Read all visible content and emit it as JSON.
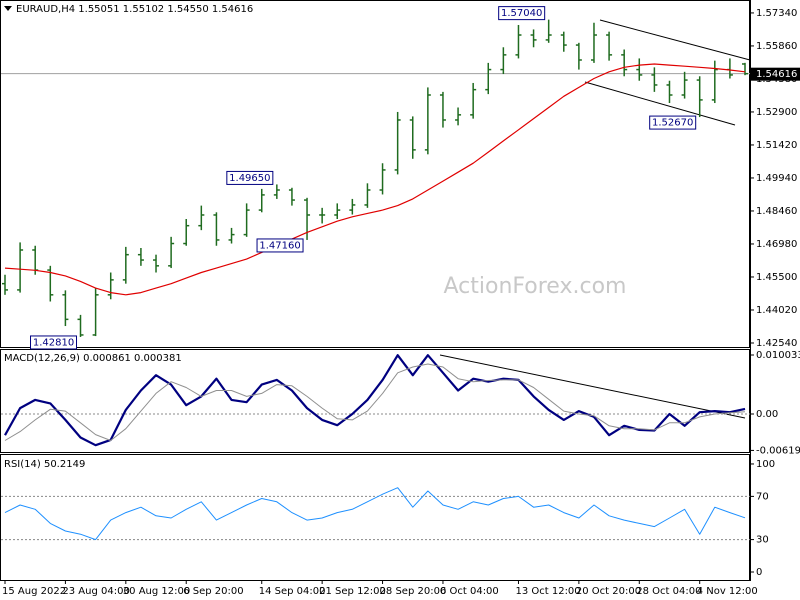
{
  "chart_data": [
    {
      "type": "ohlc",
      "title": "EURAUD,H4  1.55051 1.55102 1.54550 1.54616",
      "watermark": "ActionForex.com",
      "color": "#1f6b1f",
      "categories": [
        "15 Aug 2022",
        null,
        null,
        null,
        "23 Aug 04:00",
        null,
        null,
        null,
        "30 Aug 12:00",
        null,
        null,
        null,
        "6 Sep 20:00",
        null,
        null,
        null,
        null,
        "14 Sep 04:00",
        null,
        null,
        null,
        "21 Sep 12:00",
        null,
        null,
        null,
        "28 Sep 20:00",
        null,
        null,
        null,
        "6 Oct 04:00",
        null,
        null,
        null,
        null,
        "13 Oct 12:00",
        null,
        null,
        null,
        "20 Oct 20:00",
        null,
        null,
        null,
        "28 Oct 04:00",
        null,
        null,
        null,
        "4 Nov 12:00",
        null,
        null,
        null
      ],
      "open": [
        1.452,
        1.4492,
        1.4671,
        1.4581,
        1.447,
        1.436,
        1.429,
        1.447,
        1.4537,
        1.465,
        1.4626,
        1.46,
        1.47,
        1.478,
        1.4828,
        1.4716,
        1.474,
        1.485,
        1.4918,
        1.494,
        1.4895,
        1.4828,
        1.4828,
        1.485,
        1.4873,
        1.494,
        1.503,
        1.5254,
        1.512,
        1.5366,
        1.5254,
        1.5277,
        1.539,
        1.548,
        1.5546,
        1.5635,
        1.5613,
        1.5635,
        1.559,
        1.5523,
        1.5635,
        1.5546,
        1.548,
        1.5456,
        1.5411,
        1.5366,
        1.5433,
        1.5344,
        1.548,
        1.55051
      ],
      "high": [
        1.456,
        1.4705,
        1.469,
        1.46,
        1.449,
        1.438,
        1.45,
        1.457,
        1.4685,
        1.468,
        1.465,
        1.473,
        1.481,
        1.487,
        1.484,
        1.477,
        1.488,
        1.4945,
        1.4965,
        1.495,
        1.4905,
        1.486,
        1.488,
        1.49,
        1.497,
        1.506,
        1.529,
        1.527,
        1.54,
        1.538,
        1.531,
        1.542,
        1.551,
        1.558,
        1.568,
        1.566,
        1.5704,
        1.565,
        1.56,
        1.569,
        1.565,
        1.557,
        1.553,
        1.549,
        1.543,
        1.547,
        1.545,
        1.552,
        1.553,
        1.55102
      ],
      "low": [
        1.447,
        1.448,
        1.456,
        1.444,
        1.433,
        1.4281,
        1.4285,
        1.445,
        1.452,
        1.46,
        1.457,
        1.459,
        1.469,
        1.476,
        1.469,
        1.47,
        1.473,
        1.484,
        1.49,
        1.487,
        1.4716,
        1.479,
        1.481,
        1.483,
        1.486,
        1.492,
        1.501,
        1.508,
        1.51,
        1.522,
        1.523,
        1.526,
        1.537,
        1.546,
        1.553,
        1.558,
        1.56,
        1.556,
        1.548,
        1.551,
        1.552,
        1.545,
        1.543,
        1.538,
        1.533,
        1.535,
        1.5267,
        1.533,
        1.544,
        1.5455
      ],
      "close": [
        1.4492,
        1.4671,
        1.4581,
        1.447,
        1.436,
        1.429,
        1.447,
        1.4537,
        1.465,
        1.4626,
        1.46,
        1.47,
        1.478,
        1.4828,
        1.4716,
        1.474,
        1.485,
        1.4918,
        1.494,
        1.4895,
        1.4828,
        1.4828,
        1.485,
        1.4873,
        1.494,
        1.503,
        1.5254,
        1.512,
        1.5366,
        1.5254,
        1.5277,
        1.539,
        1.548,
        1.5546,
        1.5635,
        1.5613,
        1.5635,
        1.559,
        1.5523,
        1.5635,
        1.5546,
        1.548,
        1.5456,
        1.5411,
        1.5366,
        1.5433,
        1.5344,
        1.548,
        1.5456,
        1.54616
      ],
      "ma": {
        "color": "#e00000",
        "values": [
          1.459,
          1.4585,
          1.458,
          1.457,
          1.4555,
          1.453,
          1.45,
          1.448,
          1.447,
          1.448,
          1.45,
          1.452,
          1.4545,
          1.457,
          1.459,
          1.461,
          1.463,
          1.466,
          1.469,
          1.472,
          1.475,
          1.4775,
          1.48,
          1.482,
          1.4835,
          1.485,
          1.487,
          1.49,
          1.494,
          1.498,
          1.502,
          1.506,
          1.511,
          1.516,
          1.521,
          1.526,
          1.531,
          1.536,
          1.54,
          1.544,
          1.547,
          1.549,
          1.55,
          1.5505,
          1.55,
          1.5495,
          1.549,
          1.5485,
          1.5478,
          1.547
        ]
      },
      "last_price": {
        "value": 1.54616,
        "label": "1.54616"
      },
      "annotations": [
        {
          "value": 1.5704,
          "label": "1.57040"
        },
        {
          "value": 1.4965,
          "label": "1.49650"
        },
        {
          "value": 1.4716,
          "label": "1.47160"
        },
        {
          "value": 1.5267,
          "label": "1.52670"
        },
        {
          "value": 1.4281,
          "label": "1.42810"
        }
      ],
      "ylim": [
        1.4236,
        1.5792
      ],
      "yticks": [
        {
          "value": 1.5734,
          "label": "1.57340"
        },
        {
          "value": 1.5586,
          "label": "1.55860"
        },
        {
          "value": 1.5438,
          "label": "1.54380"
        },
        {
          "value": 1.529,
          "label": "1.52900"
        },
        {
          "value": 1.5142,
          "label": "1.51420"
        },
        {
          "value": 1.4994,
          "label": "1.49940"
        },
        {
          "value": 1.4846,
          "label": "1.48460"
        },
        {
          "value": 1.4698,
          "label": "1.46980"
        },
        {
          "value": 1.455,
          "label": "1.45500"
        },
        {
          "value": 1.4402,
          "label": "1.44020"
        },
        {
          "value": 1.4254,
          "label": "1.42540"
        }
      ]
    },
    {
      "type": "macd",
      "title": "MACD(12,26,9) 0.000861 0.000381",
      "series": [
        {
          "color": "#000080",
          "values": [
            -0.0036,
            0.001,
            0.0024,
            0.0018,
            -0.001,
            -0.004,
            -0.0053,
            -0.0044,
            0.0007,
            0.004,
            0.0066,
            0.005,
            0.0015,
            0.003,
            0.006,
            0.0024,
            0.002,
            0.005,
            0.0058,
            0.004,
            0.001,
            -0.001,
            -0.0019,
            0.0,
            0.0024,
            0.0058,
            0.01,
            0.0066,
            0.01,
            0.007,
            0.004,
            0.006,
            0.0055,
            0.006,
            0.0058,
            0.003,
            0.0007,
            -0.001,
            0.0005,
            -0.0005,
            -0.0036,
            -0.002,
            -0.0027,
            -0.0028,
            0.0,
            -0.002,
            0.0003,
            0.0005,
            0.0003,
            0.000861
          ]
        },
        {
          "color": "#909090",
          "values": [
            -0.0045,
            -0.003,
            -0.001,
            0.0008,
            0.0005,
            -0.0015,
            -0.0035,
            -0.0045,
            -0.0025,
            0.0005,
            0.0035,
            0.0055,
            0.0045,
            0.003,
            0.004,
            0.004,
            0.003,
            0.0035,
            0.005,
            0.0048,
            0.003,
            0.001,
            -0.0008,
            -0.001,
            0.0005,
            0.0035,
            0.007,
            0.008,
            0.0085,
            0.008,
            0.006,
            0.0055,
            0.0057,
            0.0058,
            0.0058,
            0.0045,
            0.0025,
            0.0005,
            0.0,
            -0.0003,
            -0.002,
            -0.0025,
            -0.0025,
            -0.0027,
            -0.0015,
            -0.0015,
            -0.0005,
            0.0,
            0.0002,
            0.000381
          ]
        }
      ],
      "ylim": [
        -0.006463,
        0.011053
      ],
      "yticks": [
        0.010033,
        {
          "value": 0,
          "label": "0.00"
        },
        -0.006193
      ],
      "levels": [
        0
      ]
    },
    {
      "type": "rsi",
      "title": "RSI(14) 50.2149",
      "color": "#1e90ff",
      "values": [
        55,
        62,
        58,
        45,
        38,
        35,
        30,
        48,
        55,
        60,
        52,
        50,
        58,
        65,
        48,
        55,
        62,
        68,
        65,
        55,
        48,
        50,
        55,
        58,
        65,
        72,
        78,
        60,
        75,
        62,
        58,
        65,
        62,
        68,
        70,
        60,
        62,
        55,
        50,
        62,
        52,
        48,
        45,
        42,
        50,
        58,
        35,
        60,
        55,
        50.2149
      ],
      "ylim": [
        -7.4,
        108.3
      ],
      "yticks": [
        100,
        70,
        30,
        0
      ],
      "levels": [
        70,
        30
      ]
    }
  ]
}
